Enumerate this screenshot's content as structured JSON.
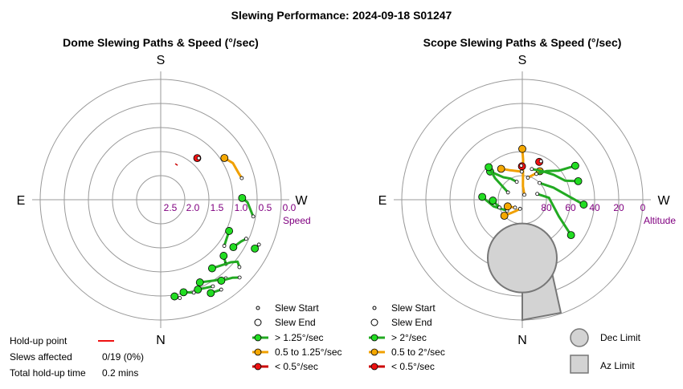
{
  "title": "Slewing Performance: 2024-09-18 S01247",
  "colors": {
    "fast": "#22aa22",
    "fast_fill": "#22dd22",
    "medium": "#f0a000",
    "medium_fill": "#f5a800",
    "slow": "#cc0000",
    "slow_fill": "#ee1111",
    "grid": "#999999",
    "tick": "#800080",
    "limit_fill": "#d3d3d3",
    "limit_stroke": "#777777"
  },
  "chart_data": [
    {
      "type": "polar-paths",
      "title": "Dome Slewing Paths & Speed (°/sec)",
      "directions": {
        "top": "S",
        "bottom": "N",
        "left": "E",
        "right": "W"
      },
      "radial_ticks": [
        "2.5",
        "2.0",
        "1.5",
        "1.0",
        "0.5",
        "0.0"
      ],
      "radial_axis_label": "Speed",
      "radial_range": [
        2.5,
        0.0
      ],
      "paths": [
        {
          "speed_class": "medium",
          "points": [
            [
              0.99,
              0.92
            ],
            [
              1.1,
              0.82
            ],
            [
              1.25,
              0.79
            ],
            [
              1.31,
              0.76
            ]
          ]
        },
        {
          "speed_class": "fast",
          "points": [
            [
              2.0,
              0.94
            ],
            [
              2.2,
              0.87
            ]
          ]
        },
        {
          "speed_class": "fast",
          "points": [
            [
              1.55,
              0.81
            ],
            [
              1.6,
              0.7
            ],
            [
              1.75,
              0.55
            ]
          ]
        },
        {
          "speed_class": "fast",
          "points": [
            [
              2.15,
              0.7
            ],
            [
              2.05,
              0.62
            ],
            [
              2.0,
              0.55
            ]
          ]
        },
        {
          "speed_class": "fast",
          "points": [
            [
              2.3,
              0.75
            ],
            [
              2.35,
              0.6
            ]
          ]
        },
        {
          "speed_class": "fast",
          "points": [
            [
              2.5,
              0.72
            ],
            [
              2.3,
              0.55
            ],
            [
              2.25,
              0.45
            ],
            [
              2.28,
              0.35
            ]
          ]
        },
        {
          "speed_class": "fast",
          "points": [
            [
              2.7,
              0.6
            ],
            [
              2.55,
              0.48
            ],
            [
              2.45,
              0.38
            ]
          ]
        },
        {
          "speed_class": "fast",
          "points": [
            [
              2.5,
              0.4
            ],
            [
              2.4,
              0.3
            ],
            [
              2.35,
              0.2
            ]
          ]
        },
        {
          "speed_class": "fast",
          "points": [
            [
              2.75,
              0.48
            ],
            [
              2.6,
              0.4
            ]
          ]
        },
        {
          "speed_class": "fast",
          "points": [
            [
              2.9,
              0.52
            ],
            [
              2.8,
              0.45
            ]
          ]
        },
        {
          "speed_class": "fast",
          "points": [
            [
              2.65,
              0.3
            ],
            [
              2.55,
              0.25
            ]
          ]
        },
        {
          "speed_class": "fast",
          "points": [
            [
              2.05,
              0.3
            ],
            [
              2.0,
              0.26
            ]
          ]
        },
        {
          "speed_class": "fast",
          "points": [
            [
              3.0,
              0.47
            ],
            [
              2.95,
              0.42
            ]
          ]
        },
        {
          "speed_class": "slow",
          "points": [
            [
              0.72,
              1.35
            ],
            [
              0.74,
              1.33
            ]
          ]
        }
      ],
      "holdup_points": [
        [
          0.42,
          1.7
        ]
      ]
    },
    {
      "type": "polar-paths",
      "title": "Scope Slewing Paths & Speed (°/sec)",
      "directions": {
        "top": "S",
        "bottom": "N",
        "left": "E",
        "right": "W"
      },
      "radial_ticks": [
        "80",
        "60",
        "40",
        "20",
        "0"
      ],
      "radial_axis_label": "Altitude",
      "radial_range": [
        90,
        0
      ],
      "paths": [
        {
          "speed_class": "medium",
          "points": [
            [
              0.0,
              52
            ],
            [
              0.02,
              60
            ],
            [
              0.05,
              80
            ],
            [
              0.4,
              86
            ]
          ]
        },
        {
          "speed_class": "medium",
          "points": [
            [
              0.55,
              65
            ],
            [
              0.4,
              70
            ],
            [
              0.25,
              73
            ]
          ]
        },
        {
          "speed_class": "medium",
          "points": [
            [
              -0.6,
              62
            ],
            [
              -0.4,
              66
            ],
            [
              -0.02,
              69
            ]
          ]
        },
        {
          "speed_class": "fast",
          "points": [
            [
              -0.85,
              58
            ],
            [
              -0.7,
              68
            ],
            [
              -0.5,
              72
            ],
            [
              -0.3,
              76
            ]
          ]
        },
        {
          "speed_class": "fast",
          "points": [
            [
              -0.8,
              55
            ],
            [
              -0.9,
              64
            ],
            [
              -1.1,
              78
            ]
          ]
        },
        {
          "speed_class": "fast",
          "points": [
            [
              1.0,
              43
            ],
            [
              0.9,
              55
            ],
            [
              0.7,
              62
            ],
            [
              0.5,
              68
            ]
          ]
        },
        {
          "speed_class": "fast",
          "points": [
            [
              1.25,
              46
            ],
            [
              1.15,
              55
            ],
            [
              0.9,
              60
            ],
            [
              0.6,
              64
            ],
            [
              0.3,
              66
            ]
          ]
        },
        {
          "speed_class": "fast",
          "points": [
            [
              1.65,
              44
            ],
            [
              1.5,
              55
            ],
            [
              1.2,
              65
            ],
            [
              0.8,
              72
            ]
          ]
        },
        {
          "speed_class": "fast",
          "points": [
            [
              2.2,
              45
            ],
            [
              2.0,
              60
            ],
            [
              1.5,
              70
            ],
            [
              1.2,
              78
            ]
          ]
        },
        {
          "speed_class": "fast",
          "points": [
            [
              -1.5,
              60
            ],
            [
              -1.8,
              68
            ],
            [
              -2.2,
              76
            ]
          ]
        },
        {
          "speed_class": "fast",
          "points": [
            [
              -1.6,
              68
            ],
            [
              -1.9,
              72
            ]
          ]
        },
        {
          "speed_class": "medium",
          "points": [
            [
              -2.3,
              72
            ],
            [
              -2.6,
              80
            ],
            [
              -2.9,
              83
            ]
          ]
        },
        {
          "speed_class": "medium",
          "points": [
            [
              -2.0,
              78
            ],
            [
              -2.4,
              82
            ]
          ]
        },
        {
          "speed_class": "slow",
          "points": [
            [
              0.42,
              59
            ],
            [
              0.45,
              58
            ]
          ]
        },
        {
          "speed_class": "slow",
          "points": [
            [
              -0.01,
              65
            ],
            [
              -0.03,
              64.5
            ]
          ]
        }
      ],
      "dec_limit": {
        "center_alt": 47,
        "center_az": 3.14159,
        "radius_alt": 12
      },
      "az_limit": {
        "az_range": [
          2.93,
          3.49
        ],
        "alt_range": [
          88,
          0
        ]
      }
    }
  ],
  "legend_left": {
    "slew_start": "Slew Start",
    "slew_end": "Slew End",
    "fast": "> 1.25°/sec",
    "medium": "0.5 to 1.25°/sec",
    "slow": "< 0.5°/sec"
  },
  "legend_right": {
    "slew_start": "Slew Start",
    "slew_end": "Slew End",
    "fast": "> 2°/sec",
    "medium": "0.5 to 2°/sec",
    "slow": "< 0.5°/sec"
  },
  "limits_legend": {
    "dec": "Dec Limit",
    "az": "Az Limit"
  },
  "holdup_info": {
    "point_label": "Hold-up point",
    "slews_label": "Slews affected",
    "slews_value": "0/19 (0%)",
    "total_label": "Total hold-up time",
    "total_value": "0.2 mins"
  }
}
